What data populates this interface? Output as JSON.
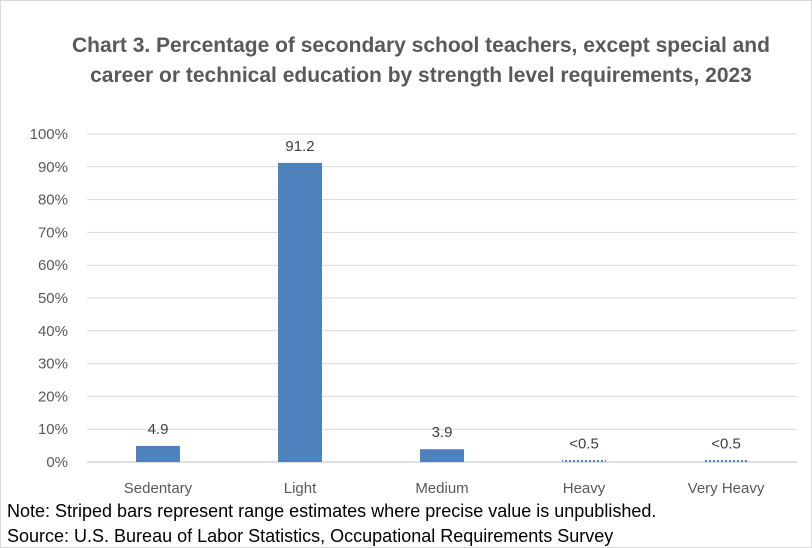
{
  "chart_data": {
    "type": "bar",
    "title": "Chart 3. Percentage of secondary school teachers, except special and career or technical education by strength level requirements, 2023",
    "categories": [
      "Sedentary",
      "Light",
      "Medium",
      "Heavy",
      "Very Heavy"
    ],
    "values": [
      4.9,
      91.2,
      3.9,
      0.5,
      0.5
    ],
    "data_labels": [
      "4.9",
      "91.2",
      "3.9",
      "<0.5",
      "<0.5"
    ],
    "range_estimate": [
      false,
      false,
      false,
      true,
      true
    ],
    "ylim": [
      0,
      100
    ],
    "y_ticks": [
      "0%",
      "10%",
      "20%",
      "30%",
      "40%",
      "50%",
      "60%",
      "70%",
      "80%",
      "90%",
      "100%"
    ],
    "xlabel": "",
    "ylabel": "",
    "grid": true,
    "bar_color": "#4f81bd",
    "grid_color": "#d9d9d9"
  },
  "footer": {
    "note": "Note: Striped bars represent range estimates where precise value is unpublished.",
    "source": "Source: U.S. Bureau of Labor Statistics, Occupational Requirements Survey"
  }
}
